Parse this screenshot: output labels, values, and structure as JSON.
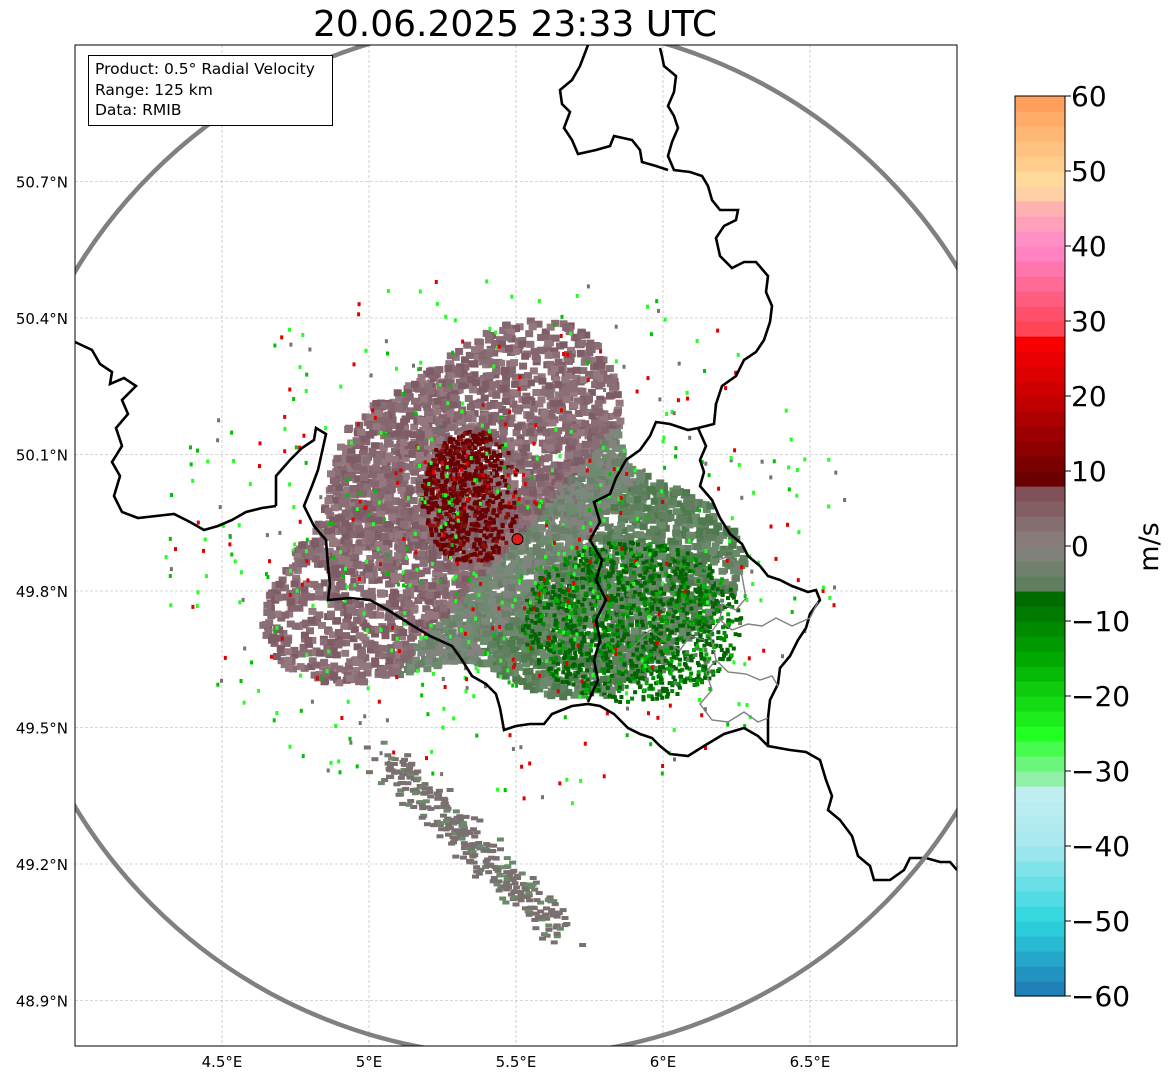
{
  "title": "20.06.2025 23:33 UTC",
  "info_box": {
    "product": "Product: 0.5° Radial Velocity",
    "range": "Range: 125 km",
    "data": "Data: RMIB"
  },
  "map": {
    "lon_range": [
      4.0,
      7.0
    ],
    "lat_range": [
      48.8,
      51.0
    ],
    "lon_ticks": [
      {
        "value": 4.5,
        "label": "4.5°E"
      },
      {
        "value": 5.0,
        "label": "5°E"
      },
      {
        "value": 5.5,
        "label": "5.5°E"
      },
      {
        "value": 6.0,
        "label": "6°E"
      },
      {
        "value": 6.5,
        "label": "6.5°E"
      }
    ],
    "lat_ticks": [
      {
        "value": 50.7,
        "label": "50.7°N"
      },
      {
        "value": 50.4,
        "label": "50.4°N"
      },
      {
        "value": 50.1,
        "label": "50.1°N"
      },
      {
        "value": 49.8,
        "label": "49.8°N"
      },
      {
        "value": 49.5,
        "label": "49.5°N"
      },
      {
        "value": 49.2,
        "label": "49.2°N"
      },
      {
        "value": 48.9,
        "label": "48.9°N"
      }
    ],
    "grid": true,
    "radar_site": {
      "lon": 5.505,
      "lat": 49.914,
      "color": "#e31a1c"
    },
    "range_ring_color": "#808080",
    "border_color": "#000000"
  },
  "colorbar": {
    "label": "m/s",
    "min": -60,
    "max": 60,
    "ticks": [
      {
        "value": 60,
        "label": "60"
      },
      {
        "value": 50,
        "label": "50"
      },
      {
        "value": 40,
        "label": "40"
      },
      {
        "value": 30,
        "label": "30"
      },
      {
        "value": 20,
        "label": "20"
      },
      {
        "value": 10,
        "label": "10"
      },
      {
        "value": 0,
        "label": "0"
      },
      {
        "value": -10,
        "label": "−10"
      },
      {
        "value": -20,
        "label": "−20"
      },
      {
        "value": -30,
        "label": "−30"
      },
      {
        "value": -40,
        "label": "−40"
      },
      {
        "value": -50,
        "label": "−50"
      },
      {
        "value": -60,
        "label": "−60"
      }
    ],
    "stops": [
      {
        "value": -60,
        "color": "#1f78b4"
      },
      {
        "value": -50,
        "color": "#2cd6df"
      },
      {
        "value": -40,
        "color": "#a6e8ee"
      },
      {
        "value": -32,
        "color": "#c4f0f2"
      },
      {
        "value": -31,
        "color": "#8ff0a6"
      },
      {
        "value": -25,
        "color": "#22ff22"
      },
      {
        "value": -15,
        "color": "#00a800"
      },
      {
        "value": -6,
        "color": "#006400"
      },
      {
        "value": -5,
        "color": "#5f7f5f"
      },
      {
        "value": 0,
        "color": "#8a8282"
      },
      {
        "value": 8,
        "color": "#7e4a52"
      },
      {
        "value": 9,
        "color": "#6a0000"
      },
      {
        "value": 20,
        "color": "#c80000"
      },
      {
        "value": 28,
        "color": "#ff0000"
      },
      {
        "value": 29,
        "color": "#ff4455"
      },
      {
        "value": 40,
        "color": "#ff88cc"
      },
      {
        "value": 45,
        "color": "#ffb0b0"
      },
      {
        "value": 48,
        "color": "#ffe0a0"
      },
      {
        "value": 60,
        "color": "#ff9955"
      }
    ]
  }
}
